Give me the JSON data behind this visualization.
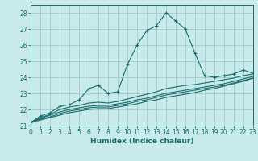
{
  "background_color": "#c8eaea",
  "grid_color": "#9ecece",
  "line_color": "#1a6b6b",
  "xlabel": "Humidex (Indice chaleur)",
  "xlim": [
    0,
    23
  ],
  "ylim": [
    21,
    28.5
  ],
  "yticks": [
    21,
    22,
    23,
    24,
    25,
    26,
    27,
    28
  ],
  "xticks": [
    0,
    1,
    2,
    3,
    4,
    5,
    6,
    7,
    8,
    9,
    10,
    11,
    12,
    13,
    14,
    15,
    16,
    17,
    18,
    19,
    20,
    21,
    22,
    23
  ],
  "series": [
    {
      "x": [
        0,
        1,
        2,
        3,
        4,
        5,
        6,
        7,
        8,
        9,
        10,
        11,
        12,
        13,
        14,
        15,
        16,
        17,
        18,
        19,
        20,
        21,
        22,
        23
      ],
      "y": [
        21.2,
        21.6,
        21.8,
        22.2,
        22.3,
        22.6,
        23.3,
        23.5,
        23.0,
        23.1,
        24.8,
        26.0,
        26.9,
        27.2,
        28.0,
        27.5,
        27.0,
        25.5,
        24.1,
        24.0,
        24.1,
        24.2,
        24.45,
        24.25
      ],
      "marker": true
    },
    {
      "x": [
        0,
        1,
        2,
        3,
        4,
        5,
        6,
        7,
        8,
        9,
        10,
        11,
        12,
        13,
        14,
        15,
        16,
        17,
        18,
        19,
        20,
        21,
        22,
        23
      ],
      "y": [
        21.2,
        21.5,
        21.7,
        22.0,
        22.15,
        22.25,
        22.4,
        22.45,
        22.4,
        22.5,
        22.65,
        22.8,
        22.95,
        23.1,
        23.3,
        23.4,
        23.5,
        23.55,
        23.65,
        23.75,
        23.85,
        23.95,
        24.1,
        24.2
      ],
      "marker": false
    },
    {
      "x": [
        0,
        1,
        2,
        3,
        4,
        5,
        6,
        7,
        8,
        9,
        10,
        11,
        12,
        13,
        14,
        15,
        16,
        17,
        18,
        19,
        20,
        21,
        22,
        23
      ],
      "y": [
        21.2,
        21.45,
        21.65,
        21.85,
        22.0,
        22.1,
        22.2,
        22.25,
        22.25,
        22.35,
        22.45,
        22.6,
        22.7,
        22.85,
        23.0,
        23.1,
        23.2,
        23.3,
        23.4,
        23.5,
        23.6,
        23.75,
        23.9,
        24.05
      ],
      "marker": false
    },
    {
      "x": [
        0,
        1,
        2,
        3,
        4,
        5,
        6,
        7,
        8,
        9,
        10,
        11,
        12,
        13,
        14,
        15,
        16,
        17,
        18,
        19,
        20,
        21,
        22,
        23
      ],
      "y": [
        21.2,
        21.4,
        21.55,
        21.75,
        21.9,
        22.0,
        22.1,
        22.15,
        22.15,
        22.25,
        22.35,
        22.5,
        22.6,
        22.75,
        22.9,
        23.0,
        23.1,
        23.2,
        23.3,
        23.4,
        23.5,
        23.65,
        23.8,
        23.95
      ],
      "marker": false
    },
    {
      "x": [
        0,
        1,
        2,
        3,
        4,
        5,
        6,
        7,
        8,
        9,
        10,
        11,
        12,
        13,
        14,
        15,
        16,
        17,
        18,
        19,
        20,
        21,
        22,
        23
      ],
      "y": [
        21.2,
        21.35,
        21.5,
        21.65,
        21.8,
        21.9,
        22.0,
        22.05,
        22.05,
        22.15,
        22.25,
        22.35,
        22.5,
        22.6,
        22.75,
        22.85,
        22.95,
        23.05,
        23.2,
        23.3,
        23.45,
        23.6,
        23.75,
        23.95
      ],
      "marker": false
    }
  ]
}
